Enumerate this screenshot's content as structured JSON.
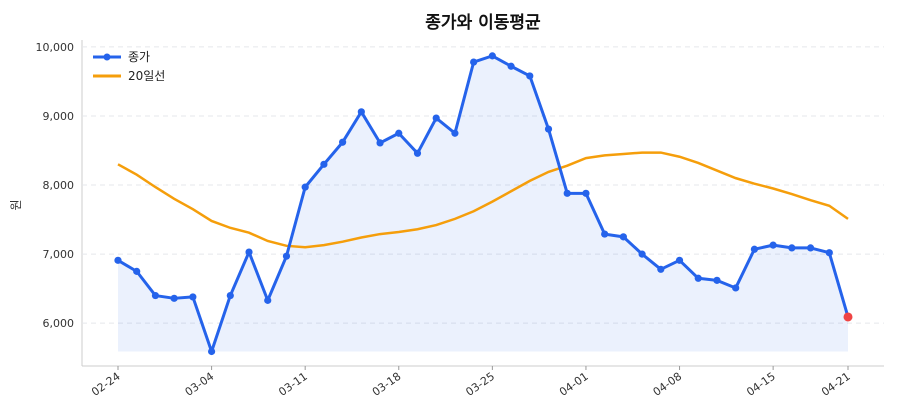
{
  "chart_data": {
    "type": "line",
    "title": "종가와 이동평균",
    "xlabel": "",
    "ylabel": "원",
    "ylim": [
      5380,
      10100
    ],
    "grid": "horizontal-dashed",
    "legend": "top-left",
    "x_ticks": [
      "02-24",
      "03-04",
      "03-11",
      "03-18",
      "03-25",
      "04-01",
      "04-08",
      "04-15",
      "04-21"
    ],
    "x_tick_indices": [
      0,
      5,
      10,
      15,
      20,
      25,
      30,
      35,
      39
    ],
    "y_ticks": [
      6000,
      7000,
      8000,
      9000,
      10000
    ],
    "y_tick_labels": [
      "6,000",
      "7,000",
      "8,000",
      "9,000",
      "10,000"
    ],
    "series": [
      {
        "name": "종가",
        "color": "#2563eb",
        "marker": "circle",
        "fill": true,
        "values": [
          6910,
          6750,
          6400,
          6360,
          6380,
          5590,
          6400,
          7030,
          6330,
          6970,
          7970,
          8300,
          8620,
          9060,
          8610,
          8750,
          8460,
          8970,
          8750,
          9780,
          9870,
          9720,
          9580,
          8810,
          7880,
          7880,
          7290,
          7250,
          7000,
          6780,
          6910,
          6650,
          6620,
          6510,
          7070,
          7130,
          7090,
          7090,
          7020,
          6090
        ]
      },
      {
        "name": "20일선",
        "color": "#f59e0b",
        "values": [
          8300,
          8150,
          7970,
          7800,
          7650,
          7480,
          7380,
          7310,
          7190,
          7120,
          7100,
          7130,
          7180,
          7240,
          7290,
          7320,
          7360,
          7420,
          7510,
          7620,
          7760,
          7910,
          8060,
          8190,
          8280,
          8390,
          8430,
          8450,
          8470,
          8470,
          8410,
          8320,
          8210,
          8100,
          8020,
          7950,
          7870,
          7780,
          7700,
          7510
        ]
      }
    ],
    "highlight_last_color": "#ef4444"
  }
}
